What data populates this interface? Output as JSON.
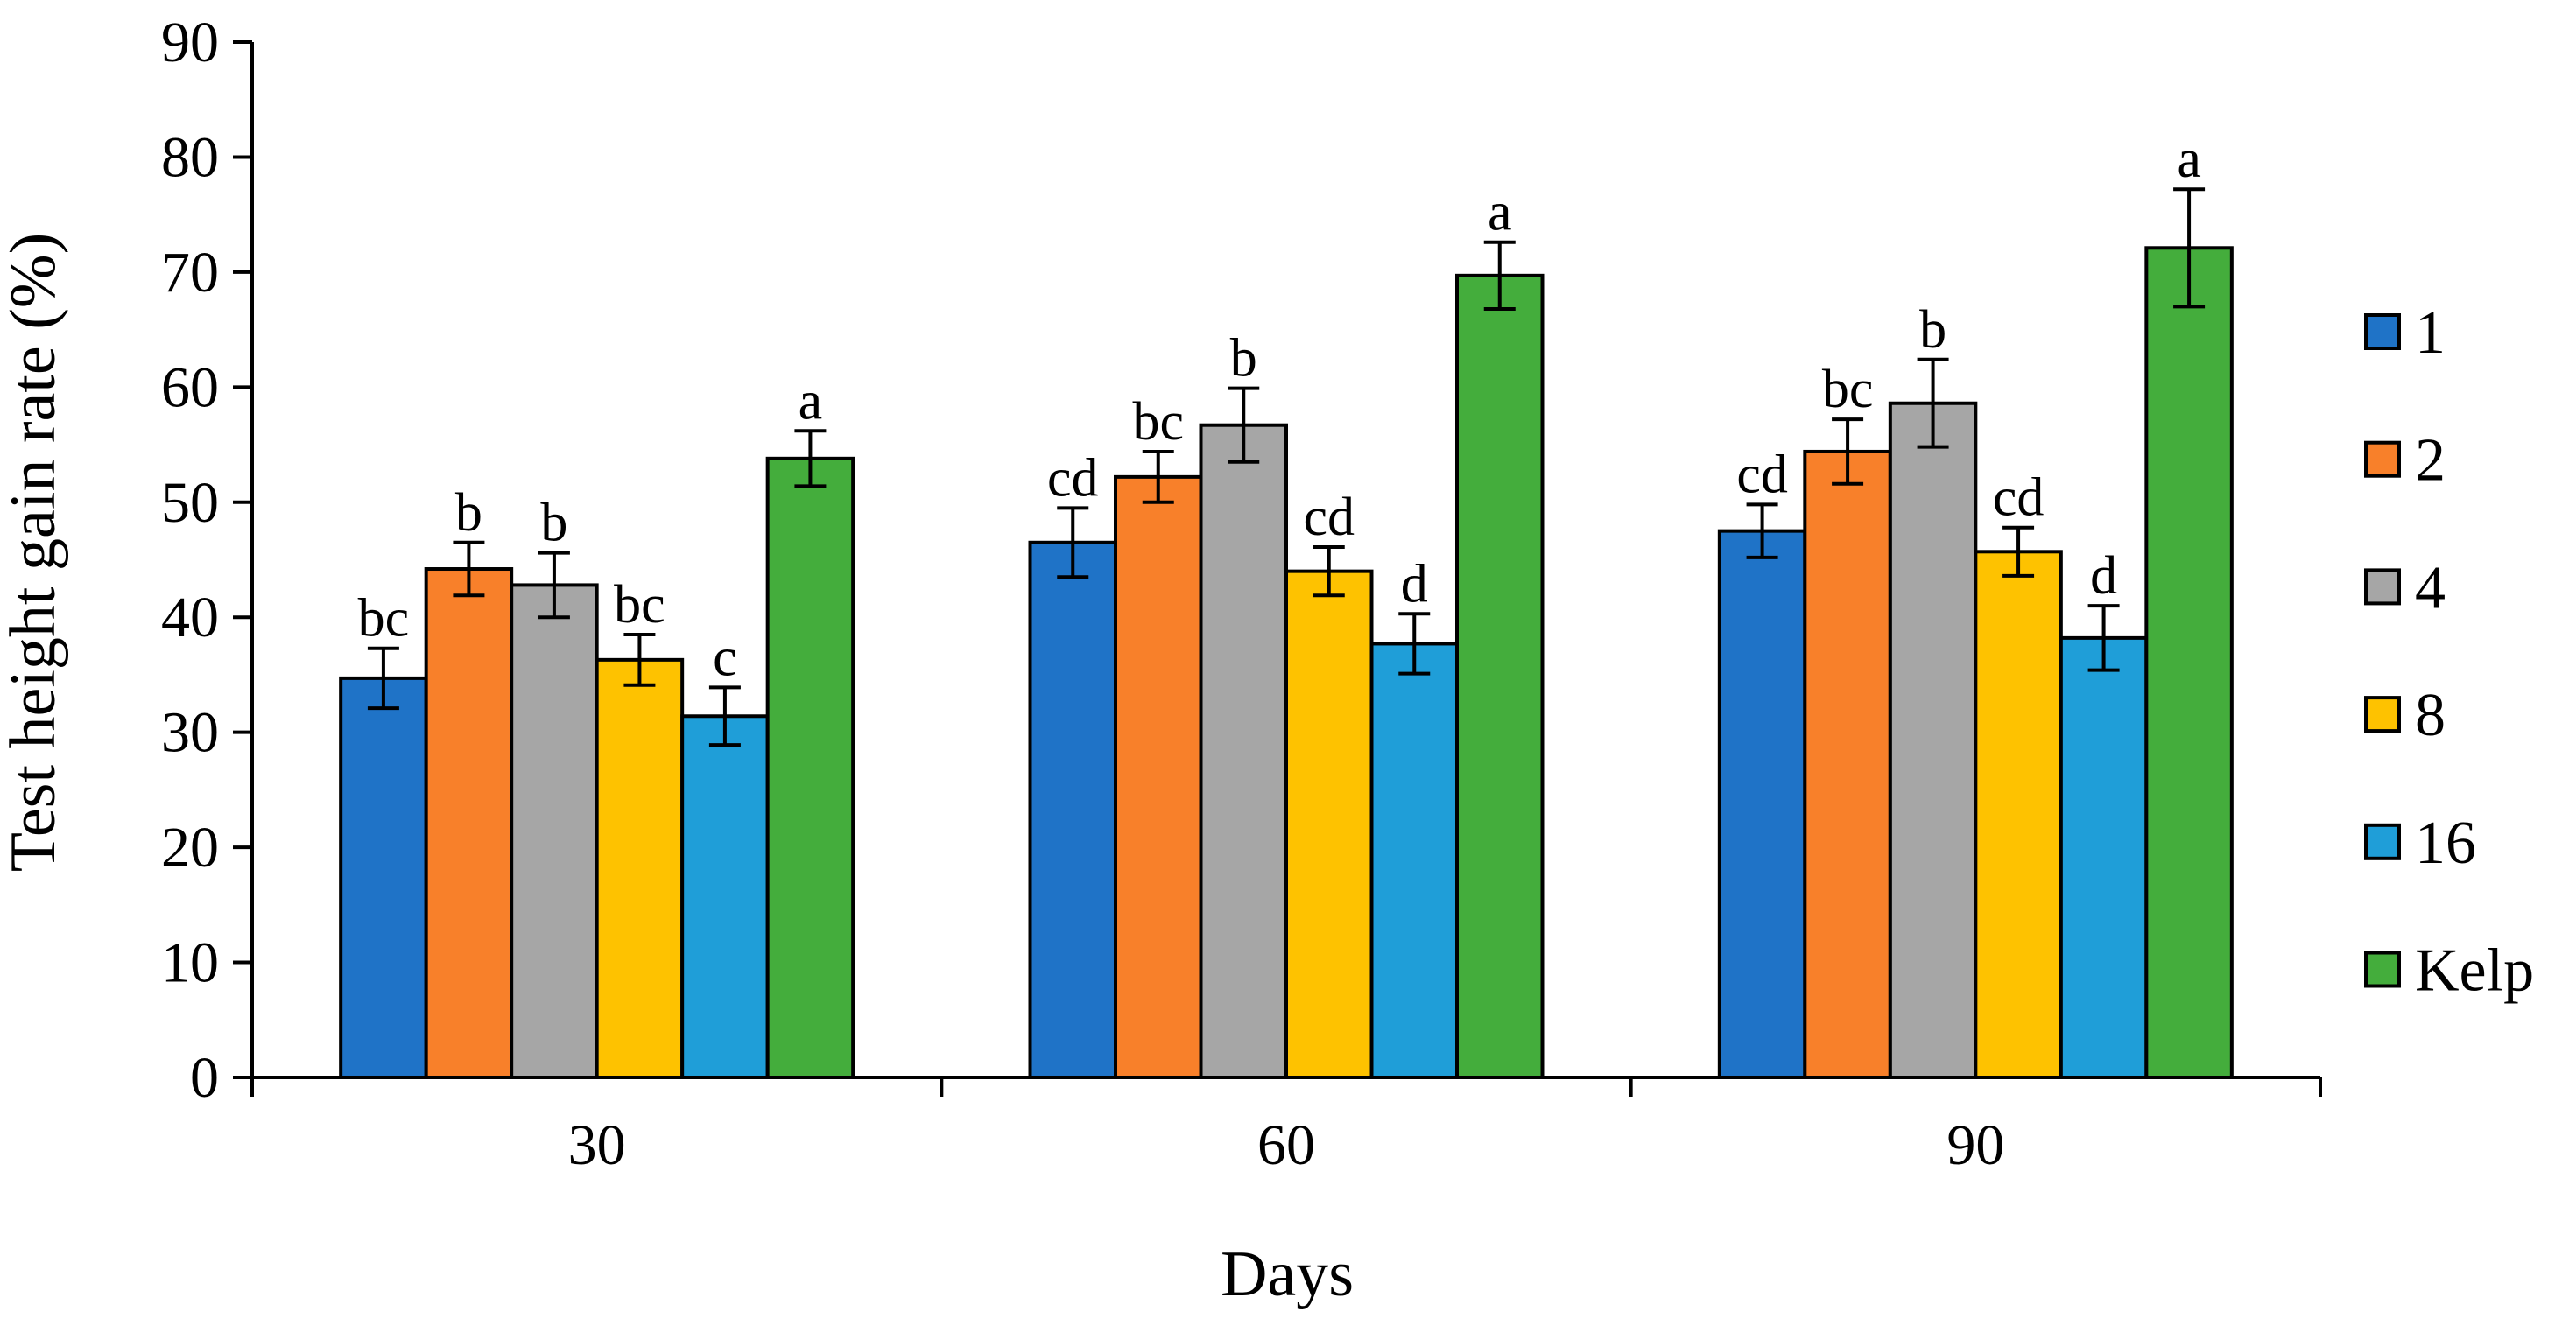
{
  "chart_data": {
    "type": "bar",
    "title": "",
    "xlabel": "Days",
    "ylabel": "Test height gain rate (%)",
    "ylim": [
      0,
      90
    ],
    "yticks": [
      "0",
      "10",
      "20",
      "30",
      "40",
      "50",
      "60",
      "70",
      "80",
      "90"
    ],
    "grid": false,
    "legend_position": "right",
    "categories": [
      "30",
      "60",
      "90"
    ],
    "series": [
      {
        "name": "1",
        "color": "#1f73c7",
        "values": [
          34.7,
          46.5,
          47.5
        ],
        "errors": [
          2.6,
          3.0,
          2.3
        ],
        "labels": [
          "bc",
          "cd",
          "cd"
        ]
      },
      {
        "name": "2",
        "color": "#f8802a",
        "values": [
          44.2,
          52.2,
          54.4
        ],
        "errors": [
          2.3,
          2.2,
          2.8
        ],
        "labels": [
          "b",
          "bc",
          "bc"
        ]
      },
      {
        "name": "4",
        "color": "#a6a6a6",
        "values": [
          42.8,
          56.7,
          58.6
        ],
        "errors": [
          2.8,
          3.2,
          3.8
        ],
        "labels": [
          "b",
          "b",
          "b"
        ]
      },
      {
        "name": "8",
        "color": "#fec200",
        "values": [
          36.3,
          44.0,
          45.7
        ],
        "errors": [
          2.2,
          2.1,
          2.1
        ],
        "labels": [
          "bc",
          "cd",
          "cd"
        ]
      },
      {
        "name": "16",
        "color": "#1f9ed8",
        "values": [
          31.4,
          37.7,
          38.2
        ],
        "errors": [
          2.5,
          2.6,
          2.8
        ],
        "labels": [
          "c",
          "d",
          "d"
        ]
      },
      {
        "name": "Kelp",
        "color": "#44ad3c",
        "values": [
          53.8,
          69.7,
          72.1
        ],
        "errors": [
          2.4,
          2.9,
          5.1
        ],
        "labels": [
          "a",
          "a",
          "a"
        ]
      }
    ]
  }
}
